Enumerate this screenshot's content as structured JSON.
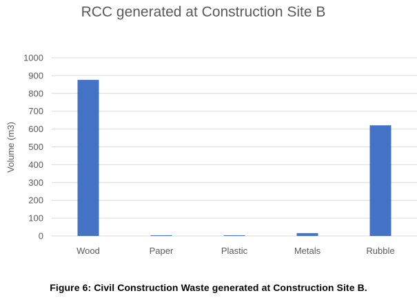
{
  "chart_data": {
    "type": "bar",
    "title": "RCC generated at Construction Site B",
    "ylabel": "Volume (m3)",
    "xlabel": "",
    "categories": [
      "Wood",
      "Paper",
      "Plastic",
      "Metals",
      "Rubble"
    ],
    "values": [
      876,
      4,
      4,
      16,
      621
    ],
    "ylim": [
      0,
      1000
    ],
    "yticks": [
      0,
      100,
      200,
      300,
      400,
      500,
      600,
      700,
      800,
      900,
      1000
    ],
    "grid": true,
    "legend": "none",
    "bar_color": "#4472C4",
    "grid_color": "#D9D9D9"
  },
  "caption": "Figure 6: Civil Construction Waste generated at Construction Site B."
}
